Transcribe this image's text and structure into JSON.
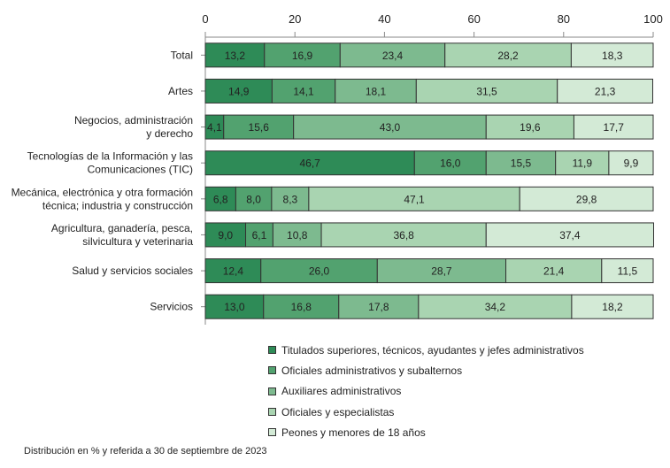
{
  "chart_data": {
    "type": "bar",
    "orientation": "horizontal",
    "stacked": true,
    "xlim": [
      0,
      100
    ],
    "xticks": [
      0,
      20,
      40,
      60,
      80,
      100
    ],
    "xaxis_position": "top",
    "grid": false,
    "legend_position": "bottom",
    "categories": [
      [
        "Total"
      ],
      [
        "Artes"
      ],
      [
        "Negocios, administración",
        "y derecho"
      ],
      [
        "Tecnologías de la Información y las",
        "Comunicaciones (TIC)"
      ],
      [
        "Mecánica, electrónica y otra formación",
        "técnica; industria y construcción"
      ],
      [
        "Agricultura, ganadería, pesca,",
        "silvicultura y veterinaria"
      ],
      [
        "Salud y servicios sociales"
      ],
      [
        "Servicios"
      ]
    ],
    "series": [
      {
        "name": "Titulados superiores, técnicos, ayudantes y jefes administrativos",
        "color": "#2e8b57",
        "values": [
          13.2,
          14.9,
          4.1,
          46.7,
          6.8,
          9.0,
          12.4,
          13.0
        ],
        "labels": [
          "13,2",
          "14,9",
          "4,1",
          "46,7",
          "6,8",
          "9,0",
          "12,4",
          "13,0"
        ]
      },
      {
        "name": "Oficiales administrativos y subalternos",
        "color": "#52a26f",
        "values": [
          16.9,
          14.1,
          15.6,
          16.0,
          8.0,
          6.1,
          26.0,
          16.8
        ],
        "labels": [
          "16,9",
          "14,1",
          "15,6",
          "16,0",
          "8,0",
          "6,1",
          "26,0",
          "16,8"
        ]
      },
      {
        "name": "Auxiliares administrativos",
        "color": "#7dba8f",
        "values": [
          23.4,
          18.1,
          43.0,
          15.5,
          8.3,
          10.8,
          28.7,
          17.8
        ],
        "labels": [
          "23,4",
          "18,1",
          "43,0",
          "15,5",
          "8,3",
          "10,8",
          "28,7",
          "17,8"
        ]
      },
      {
        "name": "Oficiales y especialistas",
        "color": "#a9d4b1",
        "values": [
          28.2,
          31.5,
          19.6,
          11.9,
          47.1,
          36.8,
          21.4,
          34.2
        ],
        "labels": [
          "28,2",
          "31,5",
          "19,6",
          "11,9",
          "47,1",
          "36,8",
          "21,4",
          "34,2"
        ]
      },
      {
        "name": "Peones y menores de 18 años",
        "color": "#d3ead6",
        "values": [
          18.3,
          21.3,
          17.7,
          9.9,
          29.8,
          37.4,
          11.5,
          18.2
        ],
        "labels": [
          "18,3",
          "21,3",
          "17,7",
          "9,9",
          "29,8",
          "37,4",
          "11,5",
          "18,2"
        ]
      }
    ],
    "footnote": "Distribución en % y referida a 30 de septiembre de 2023"
  }
}
